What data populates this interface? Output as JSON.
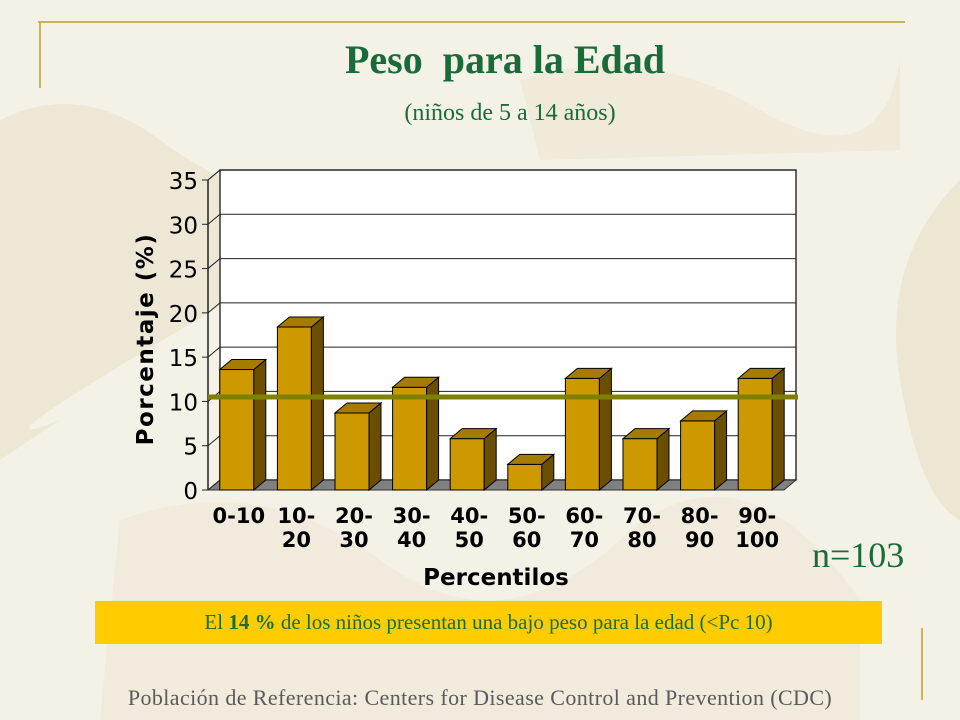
{
  "slide": {
    "title": "Peso  para la Edad",
    "subtitle": "(niños de 5 a 14 años)",
    "n_label": "n=103",
    "note_pre": "El ",
    "note_bold": "14 %",
    "note_post": " de los niños presentan una bajo peso para la edad (<Pc 10)",
    "footer": "Población de Referencia:  Centers for Disease Control and Prevention (CDC)"
  },
  "colors": {
    "title": "#1a6b3a",
    "bar_front": "#cc9900",
    "bar_top": "#a67c00",
    "bar_side": "#6b4f00",
    "ref_line": "#808000",
    "note_bg": "#ffcc00"
  },
  "chart_data": {
    "type": "bar",
    "categories": [
      [
        "0-10"
      ],
      [
        "10-",
        "20"
      ],
      [
        "20-",
        "30"
      ],
      [
        "30-",
        "40"
      ],
      [
        "40-",
        "50"
      ],
      [
        "50-",
        "60"
      ],
      [
        "60-",
        "70"
      ],
      [
        "70-",
        "80"
      ],
      [
        "80-",
        "90"
      ],
      [
        "90-",
        "100"
      ]
    ],
    "values": [
      13.6,
      18.4,
      8.7,
      11.6,
      5.8,
      2.9,
      12.6,
      5.8,
      7.8,
      12.6
    ],
    "xlabel": "Percentilos",
    "ylabel": "Porcentaje (%)",
    "ylim": [
      0,
      35
    ],
    "yticks": [
      0,
      5,
      10,
      15,
      20,
      25,
      30,
      35
    ],
    "reference_line": 10.5,
    "grid": true
  }
}
